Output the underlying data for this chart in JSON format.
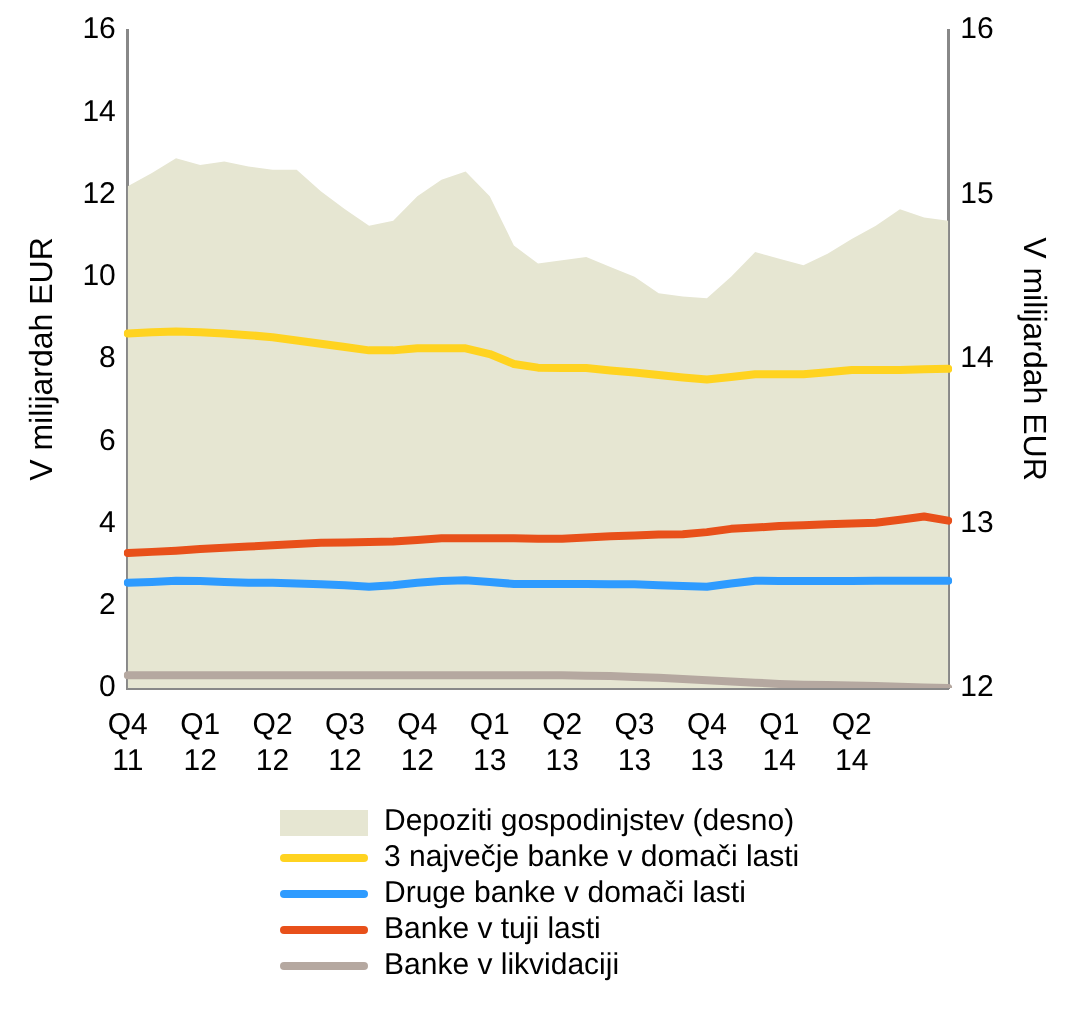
{
  "chart_data": {
    "type": "line",
    "ylabel": "V milijardah EUR",
    "y2label": "V milijardah EUR",
    "categories": [
      "Q4 11",
      null,
      null,
      "Q1 12",
      null,
      null,
      "Q2 12",
      null,
      null,
      "Q3 12",
      null,
      null,
      "Q4 12",
      null,
      null,
      "Q1 13",
      null,
      null,
      "Q2 13",
      null,
      null,
      "Q3 13",
      null,
      null,
      "Q4 13",
      null,
      null,
      "Q1 14",
      null,
      null,
      "Q2 14",
      null,
      null,
      null,
      null
    ],
    "ylim": [
      0,
      16
    ],
    "yticks": [
      0,
      2,
      4,
      6,
      8,
      10,
      12,
      14,
      16
    ],
    "y2lim": [
      12,
      16
    ],
    "y2ticks": [
      12,
      13,
      14,
      15,
      16
    ],
    "grid": false,
    "legend": "bottom",
    "marker": "none",
    "series": [
      {
        "name": "Depoziti gospodinjstev (desno)",
        "type": "area",
        "axis": "y2",
        "color": "#e6e6d2",
        "values": [
          15.05,
          15.13,
          15.22,
          15.18,
          15.2,
          15.17,
          15.15,
          15.15,
          15.02,
          14.91,
          14.81,
          14.84,
          14.99,
          15.09,
          15.14,
          14.99,
          14.69,
          14.58,
          14.6,
          14.62,
          14.56,
          14.5,
          14.4,
          14.38,
          14.37,
          14.5,
          14.65,
          14.61,
          14.57,
          14.64,
          14.73,
          14.81,
          14.91,
          14.86,
          14.84
        ]
      },
      {
        "name": "3 največje banke v domači lasti",
        "type": "line",
        "color": "#ffd320",
        "values": [
          8.62,
          8.65,
          8.67,
          8.65,
          8.62,
          8.58,
          8.53,
          8.45,
          8.37,
          8.29,
          8.21,
          8.21,
          8.26,
          8.26,
          8.26,
          8.12,
          7.88,
          7.79,
          7.78,
          7.78,
          7.72,
          7.67,
          7.61,
          7.55,
          7.5,
          7.56,
          7.63,
          7.63,
          7.63,
          7.68,
          7.73,
          7.73,
          7.73,
          7.75,
          7.76
        ]
      },
      {
        "name": "Druge banke v domači lasti",
        "type": "line",
        "color": "#2e9bff",
        "values": [
          2.56,
          2.58,
          2.61,
          2.6,
          2.58,
          2.56,
          2.56,
          2.54,
          2.52,
          2.5,
          2.46,
          2.5,
          2.56,
          2.6,
          2.62,
          2.58,
          2.53,
          2.53,
          2.53,
          2.53,
          2.52,
          2.52,
          2.5,
          2.48,
          2.46,
          2.54,
          2.61,
          2.6,
          2.6,
          2.6,
          2.6,
          2.61,
          2.61,
          2.61,
          2.61
        ]
      },
      {
        "name": "Banke v tuji lasti",
        "type": "line",
        "color": "#e8501a",
        "values": [
          3.28,
          3.31,
          3.34,
          3.38,
          3.41,
          3.44,
          3.47,
          3.5,
          3.53,
          3.54,
          3.55,
          3.56,
          3.6,
          3.64,
          3.64,
          3.64,
          3.64,
          3.63,
          3.63,
          3.66,
          3.69,
          3.71,
          3.73,
          3.74,
          3.79,
          3.87,
          3.9,
          3.94,
          3.96,
          3.98,
          4,
          4.02,
          4.09,
          4.17,
          4.07
        ]
      },
      {
        "name": "Banke v likvidaciji",
        "type": "line",
        "color": "#b5a8a0",
        "values": [
          0.31,
          0.31,
          0.31,
          0.31,
          0.31,
          0.31,
          0.31,
          0.31,
          0.31,
          0.31,
          0.31,
          0.31,
          0.31,
          0.31,
          0.31,
          0.31,
          0.31,
          0.31,
          0.31,
          0.3,
          0.29,
          0.27,
          0.25,
          0.22,
          0.19,
          0.16,
          0.13,
          0.1,
          0.08,
          0.07,
          0.06,
          0.05,
          0.03,
          0.01,
          0
        ]
      }
    ]
  }
}
